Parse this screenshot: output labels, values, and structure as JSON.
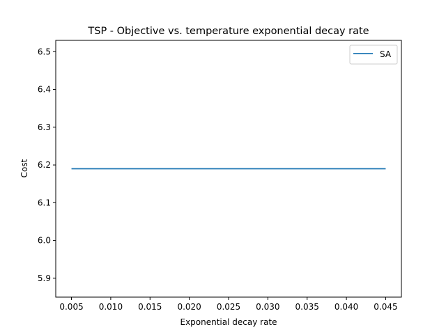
{
  "chart_data": {
    "type": "line",
    "title": "TSP - Objective vs. temperature exponential decay rate",
    "xlabel": "Exponential decay rate",
    "ylabel": "Cost",
    "xlim": [
      0.003,
      0.047
    ],
    "ylim": [
      5.85,
      6.53
    ],
    "xticks": [
      0.005,
      0.01,
      0.015,
      0.02,
      0.025,
      0.03,
      0.035,
      0.04,
      0.045
    ],
    "xtick_labels": [
      "0.005",
      "0.010",
      "0.015",
      "0.020",
      "0.025",
      "0.030",
      "0.035",
      "0.040",
      "0.045"
    ],
    "yticks": [
      5.9,
      6.0,
      6.1,
      6.2,
      6.3,
      6.4,
      6.5
    ],
    "ytick_labels": [
      "5.9",
      "6.0",
      "6.1",
      "6.2",
      "6.3",
      "6.4",
      "6.5"
    ],
    "grid": false,
    "legend_position": "top-right",
    "series": [
      {
        "name": "SA",
        "color": "#1f77b4",
        "x": [
          0.005,
          0.01,
          0.015,
          0.02,
          0.025,
          0.03,
          0.035,
          0.04,
          0.045
        ],
        "y": [
          6.19,
          6.19,
          6.19,
          6.19,
          6.19,
          6.19,
          6.19,
          6.19,
          6.19
        ]
      }
    ]
  }
}
